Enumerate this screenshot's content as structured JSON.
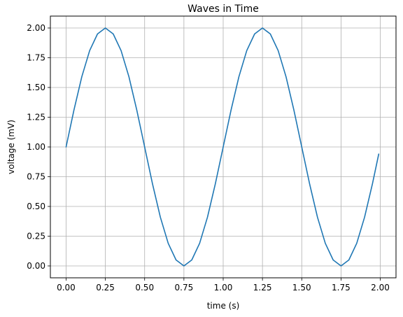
{
  "chart_data": {
    "type": "line",
    "title": "Waves in Time",
    "xlabel": "time (s)",
    "ylabel": "voltage (mV)",
    "xlim": [
      -0.1,
      2.1
    ],
    "ylim": [
      -0.1,
      2.1
    ],
    "x_ticks": [
      0.0,
      0.25,
      0.5,
      0.75,
      1.0,
      1.25,
      1.5,
      1.75,
      2.0
    ],
    "x_tick_labels": [
      "0.00",
      "0.25",
      "0.50",
      "0.75",
      "1.00",
      "1.25",
      "1.50",
      "1.75",
      "2.00"
    ],
    "y_ticks": [
      0.0,
      0.25,
      0.5,
      0.75,
      1.0,
      1.25,
      1.5,
      1.75,
      2.0
    ],
    "y_tick_labels": [
      "0.00",
      "0.25",
      "0.50",
      "0.75",
      "1.00",
      "1.25",
      "1.50",
      "1.75",
      "2.00"
    ],
    "grid": true,
    "series": [
      {
        "color": "#1f77b4",
        "x": [
          0.0,
          0.05,
          0.1,
          0.15,
          0.2,
          0.25,
          0.3,
          0.35,
          0.4,
          0.45,
          0.5,
          0.55,
          0.6,
          0.65,
          0.7,
          0.75,
          0.8,
          0.85,
          0.9,
          0.95,
          1.0,
          1.05,
          1.1,
          1.15,
          1.2,
          1.25,
          1.3,
          1.35,
          1.4,
          1.45,
          1.5,
          1.55,
          1.6,
          1.65,
          1.7,
          1.75,
          1.8,
          1.85,
          1.9,
          1.95,
          1.99
        ],
        "y": [
          1.0,
          1.31,
          1.59,
          1.81,
          1.95,
          2.0,
          1.95,
          1.81,
          1.59,
          1.31,
          1.0,
          0.69,
          0.41,
          0.19,
          0.05,
          0.0,
          0.05,
          0.19,
          0.41,
          0.69,
          1.0,
          1.31,
          1.59,
          1.81,
          1.95,
          2.0,
          1.95,
          1.81,
          1.59,
          1.31,
          1.0,
          0.69,
          0.41,
          0.19,
          0.05,
          0.0,
          0.05,
          0.19,
          0.41,
          0.69,
          0.94
        ]
      }
    ]
  }
}
